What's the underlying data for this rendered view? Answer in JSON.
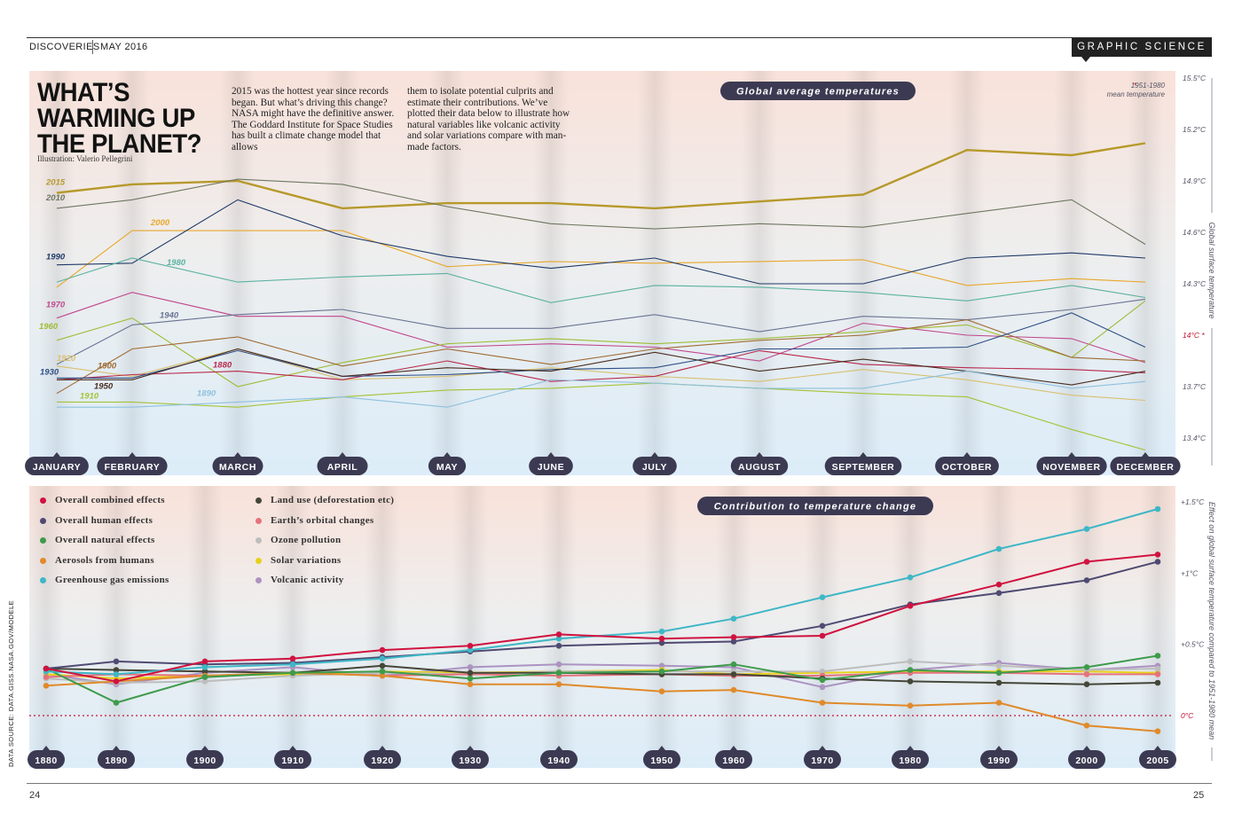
{
  "header": {
    "section": "DISCOVERIES",
    "date": "MAY 2016",
    "badge": "GRAPHIC SCIENCE"
  },
  "footer": {
    "page_left": "24",
    "page_right": "25",
    "source": "DATA SOURCE: DATA.GISS.NASA.GOV/MODELE"
  },
  "article": {
    "title_lines": [
      "WHAT’S",
      "WARMING UP",
      "THE PLANET?"
    ],
    "illustration_credit": "Illustration: Valerio Pellegrini",
    "intro_col1": "2015 was the hottest year since records began. But what’s driving this change? NASA might have the definitive answer. The Goddard Institute for Space Studies has built a climate change model that allows",
    "intro_col2": "them to isolate potential culprits and estimate their contributions. We’ve plotted their data below to illustrate how natural variables like volcanic activity and solar variations compare with man-made factors."
  },
  "colors": {
    "panel_top": "#f9e2da",
    "panel_mid": "#eeeeee",
    "panel_bottom": "#dcedf9",
    "pill_bg": "#3c3a52",
    "pill_text": "#ffffff",
    "axis_text": "#555566",
    "zero_line": "#c8102e"
  },
  "chart_data": [
    {
      "type": "line",
      "title": "Global average temperatures",
      "ylabel": "Global surface temperature",
      "note_marker": "*",
      "note": "1951-1980 mean temperature",
      "categories": [
        "JANUARY",
        "FEBRUARY",
        "MARCH",
        "APRIL",
        "MAY",
        "JUNE",
        "JULY",
        "AUGUST",
        "SEPTEMBER",
        "OCTOBER",
        "NOVEMBER",
        "DECEMBER"
      ],
      "ylim": [
        13.3,
        15.6
      ],
      "y_ticks": [
        "15.5°C",
        "15.2°C",
        "14.9°C",
        "14.6°C",
        "14.3°C",
        "14°C *",
        "13.7°C",
        "13.4°C"
      ],
      "y_tick_values": [
        15.5,
        15.2,
        14.9,
        14.6,
        14.3,
        14.0,
        13.7,
        13.4
      ],
      "series": [
        {
          "name": "2015",
          "color": "#b6992a",
          "values": [
            14.83,
            14.88,
            14.9,
            14.74,
            14.77,
            14.77,
            14.74,
            14.78,
            14.82,
            15.08,
            15.05,
            15.12
          ]
        },
        {
          "name": "2010",
          "color": "#6d7760",
          "values": [
            14.74,
            14.79,
            14.91,
            14.88,
            14.75,
            14.65,
            14.62,
            14.65,
            14.63,
            14.71,
            14.79,
            14.53
          ]
        },
        {
          "name": "2000",
          "color": "#e8a72a",
          "values": [
            14.28,
            14.61,
            14.61,
            14.61,
            14.4,
            14.43,
            14.42,
            14.43,
            14.44,
            14.29,
            14.33,
            14.31
          ]
        },
        {
          "name": "1990",
          "color": "#1f3a6a",
          "values": [
            14.41,
            14.42,
            14.79,
            14.58,
            14.46,
            14.39,
            14.45,
            14.3,
            14.3,
            14.45,
            14.48,
            14.45
          ]
        },
        {
          "name": "1980",
          "color": "#5ab2a0",
          "values": [
            14.31,
            14.45,
            14.31,
            14.34,
            14.36,
            14.19,
            14.29,
            14.28,
            14.25,
            14.2,
            14.29,
            14.22
          ]
        },
        {
          "name": "1970",
          "color": "#c2478e",
          "values": [
            14.1,
            14.25,
            14.11,
            14.11,
            13.93,
            13.95,
            13.93,
            13.85,
            14.07,
            14.0,
            13.98,
            13.84
          ]
        },
        {
          "name": "1960",
          "color": "#9fbc34",
          "values": [
            13.97,
            14.1,
            13.7,
            13.84,
            13.95,
            13.98,
            13.95,
            13.98,
            14.02,
            14.06,
            13.87,
            14.2
          ]
        },
        {
          "name": "1940",
          "color": "#6a7392",
          "values": [
            13.83,
            14.06,
            14.12,
            14.15,
            14.04,
            14.04,
            14.12,
            14.02,
            14.11,
            14.09,
            14.15,
            14.21
          ]
        },
        {
          "name": "1920",
          "color": "#d9c070",
          "values": [
            13.82,
            13.76,
            13.92,
            13.74,
            13.76,
            13.81,
            13.76,
            13.73,
            13.8,
            13.74,
            13.65,
            13.62
          ]
        },
        {
          "name": "1900",
          "color": "#a06a32",
          "values": [
            13.66,
            13.92,
            13.99,
            13.82,
            13.92,
            13.83,
            13.92,
            13.97,
            14.0,
            14.09,
            13.87,
            13.85
          ]
        },
        {
          "name": "1880",
          "color": "#b9284b",
          "values": [
            13.74,
            13.77,
            13.79,
            13.74,
            13.85,
            13.73,
            13.76,
            13.91,
            13.83,
            13.81,
            13.8,
            13.78
          ]
        },
        {
          "name": "1930",
          "color": "#2e4f86",
          "values": [
            13.75,
            13.75,
            13.91,
            13.76,
            13.77,
            13.8,
            13.81,
            13.92,
            13.92,
            13.93,
            14.13,
            13.93
          ]
        },
        {
          "name": "1950",
          "color": "#4a2d20",
          "values": [
            13.74,
            13.74,
            13.92,
            13.76,
            13.81,
            13.79,
            13.9,
            13.79,
            13.86,
            13.79,
            13.71,
            13.79
          ]
        },
        {
          "name": "1910",
          "color": "#a5c336",
          "values": [
            13.61,
            13.61,
            13.58,
            13.64,
            13.68,
            13.69,
            13.72,
            13.69,
            13.66,
            13.64,
            13.45,
            13.33
          ]
        },
        {
          "name": "1890",
          "color": "#8ec1de",
          "values": [
            13.58,
            13.58,
            13.61,
            13.64,
            13.58,
            13.74,
            13.72,
            13.69,
            13.69,
            13.79,
            13.69,
            13.73
          ]
        }
      ]
    },
    {
      "type": "line",
      "title": "Contribution to temperature change",
      "ylabel": "Effect on global surface temperature compared to 1951-1980 mean",
      "categories": [
        "1880",
        "1890",
        "1900",
        "1910",
        "1920",
        "1930",
        "1940",
        "1950",
        "1960",
        "1970",
        "1980",
        "1990",
        "2000",
        "2005"
      ],
      "ylim": [
        -0.15,
        1.5
      ],
      "y_ticks": [
        "+1.5°C",
        "+1°C",
        "+0.5°C",
        "0°C"
      ],
      "y_tick_values": [
        1.5,
        1.0,
        0.5,
        0.0
      ],
      "series": [
        {
          "name": "Overall combined effects",
          "color": "#d0123f",
          "values": [
            0.33,
            0.24,
            0.38,
            0.4,
            0.46,
            0.49,
            0.57,
            0.54,
            0.55,
            0.56,
            0.77,
            0.92,
            1.08,
            1.13
          ]
        },
        {
          "name": "Overall human effects",
          "color": "#4f4a72",
          "values": [
            0.33,
            0.38,
            0.36,
            0.37,
            0.41,
            0.45,
            0.49,
            0.51,
            0.52,
            0.63,
            0.78,
            0.86,
            0.95,
            1.08
          ]
        },
        {
          "name": "Overall natural effects",
          "color": "#3e9b4a",
          "values": [
            0.33,
            0.09,
            0.27,
            0.3,
            0.31,
            0.26,
            0.3,
            0.31,
            0.36,
            0.25,
            0.32,
            0.3,
            0.34,
            0.42
          ]
        },
        {
          "name": "Aerosols from humans",
          "color": "#e08a2a",
          "values": [
            0.21,
            0.24,
            0.28,
            0.3,
            0.28,
            0.22,
            0.22,
            0.17,
            0.18,
            0.09,
            0.07,
            0.09,
            -0.07,
            -0.11
          ]
        },
        {
          "name": "Greenhouse gas emissions",
          "color": "#3db7c6",
          "values": [
            0.31,
            0.29,
            0.34,
            0.36,
            0.4,
            0.46,
            0.54,
            0.59,
            0.68,
            0.83,
            0.97,
            1.17,
            1.31,
            1.45
          ]
        },
        {
          "name": "Land use (deforestation etc)",
          "color": "#444638",
          "values": [
            0.33,
            0.32,
            0.31,
            0.3,
            0.35,
            0.3,
            0.3,
            0.29,
            0.29,
            0.26,
            0.24,
            0.23,
            0.22,
            0.23
          ]
        },
        {
          "name": "Earth’s orbital changes",
          "color": "#e5727c",
          "values": [
            0.27,
            0.29,
            0.28,
            0.3,
            0.28,
            0.29,
            0.28,
            0.29,
            0.28,
            0.28,
            0.3,
            0.3,
            0.29,
            0.29
          ]
        },
        {
          "name": "Ozone pollution",
          "color": "#bdbdbd",
          "values": [
            0.26,
            0.23,
            0.24,
            0.28,
            0.3,
            0.29,
            0.31,
            0.31,
            0.31,
            0.31,
            0.38,
            0.35,
            0.32,
            0.33
          ]
        },
        {
          "name": "Solar variations",
          "color": "#e8d11a",
          "values": [
            0.29,
            0.26,
            0.28,
            0.29,
            0.31,
            0.3,
            0.31,
            0.32,
            0.29,
            0.3,
            0.31,
            0.31,
            0.31,
            0.3
          ]
        },
        {
          "name": "Volcanic activity",
          "color": "#ac93c2",
          "values": [
            0.29,
            0.22,
            0.3,
            0.34,
            0.28,
            0.34,
            0.36,
            0.35,
            0.34,
            0.2,
            0.32,
            0.37,
            0.32,
            0.35
          ]
        }
      ]
    }
  ]
}
